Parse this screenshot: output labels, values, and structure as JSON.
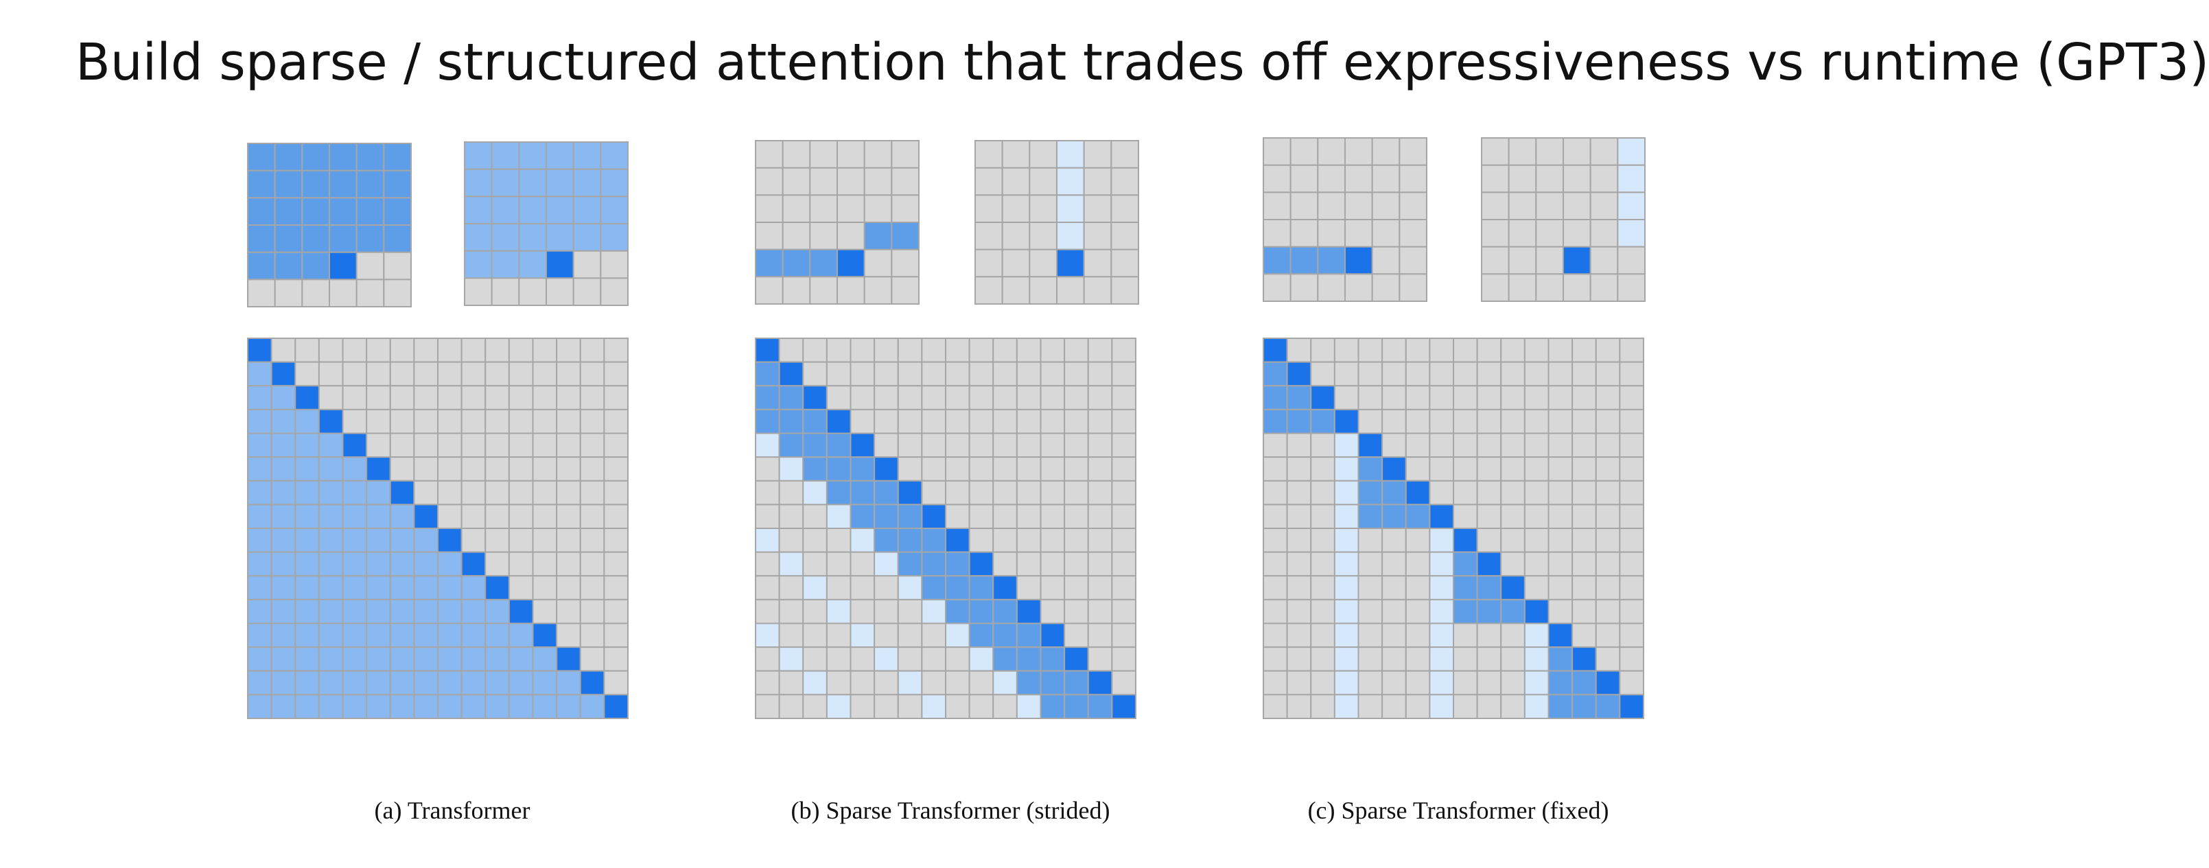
{
  "title": "Build sparse / structured attention that trades off expressiveness vs runtime (GPT3)",
  "panels": [
    {
      "caption": "(a) Transformer",
      "pattern": "full"
    },
    {
      "caption": "(b) Sparse Transformer (strided)",
      "pattern": "strided"
    },
    {
      "caption": "(c) Sparse Transformer (fixed)",
      "pattern": "fixed"
    }
  ],
  "legend": {
    "query_color": "#1a73e8",
    "attended_color": "#8ab8f0",
    "strong_attended_color": "#5e9ee8",
    "secondary_color": "#d6e8fb",
    "empty_color": "#d8d8d8",
    "line_color": "#a6a6a6"
  }
}
